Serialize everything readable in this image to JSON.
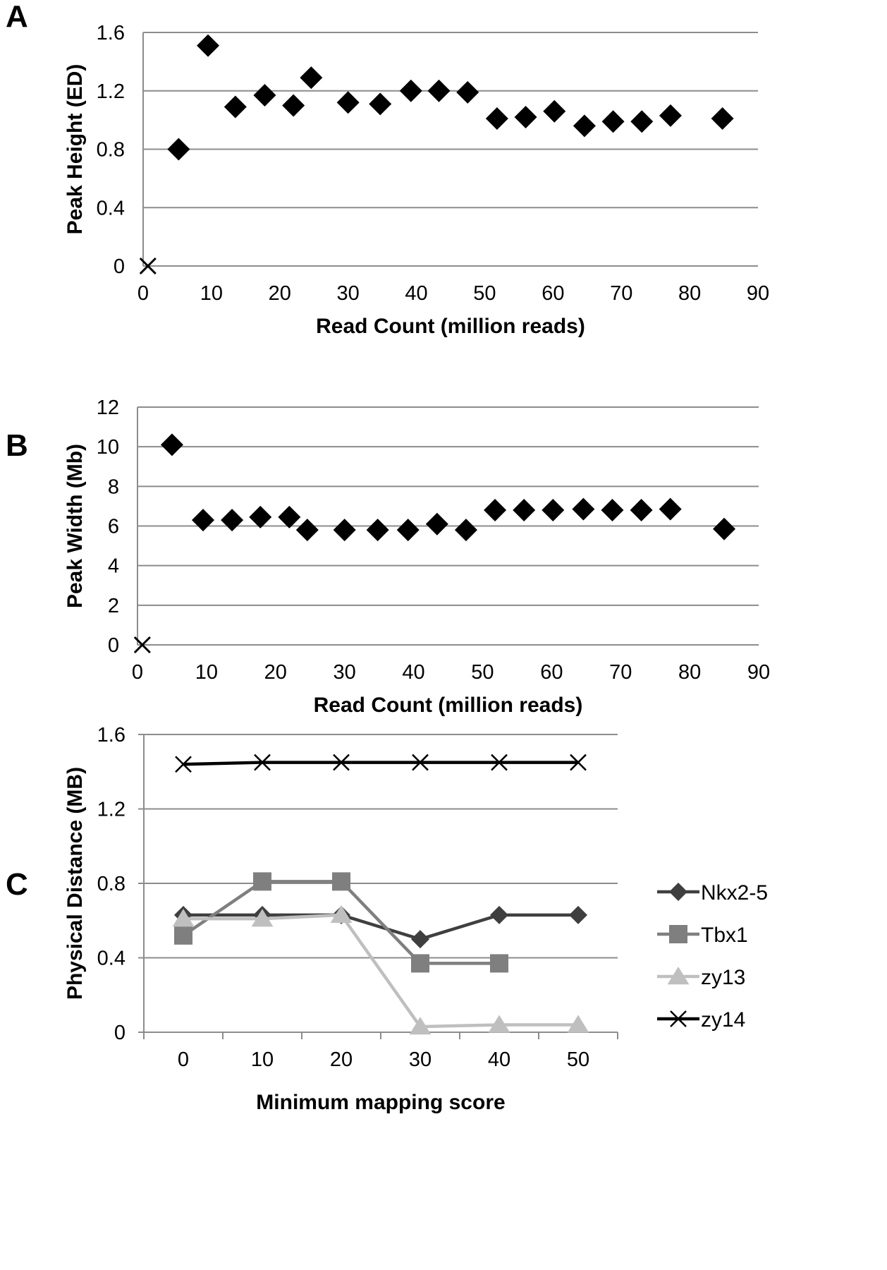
{
  "panels": {
    "a": "A",
    "b": "B",
    "c": "C"
  },
  "chart_data": [
    {
      "type": "scatter",
      "panel": "A",
      "xlabel": "Read Count (million reads)",
      "ylabel": "Peak Height (ED)",
      "xlim": [
        0,
        90
      ],
      "ylim": [
        0,
        1.6
      ],
      "x_ticks": [
        "0",
        "10",
        "20",
        "30",
        "40",
        "50",
        "60",
        "70",
        "80",
        "90"
      ],
      "y_ticks": [
        "0",
        "0.4",
        "0.8",
        "1.2",
        "1.6"
      ],
      "grid": true,
      "marker": "diamond",
      "series": [
        {
          "points": [
            [
              5.2,
              0.8
            ],
            [
              9.5,
              1.51
            ],
            [
              13.5,
              1.09
            ],
            [
              17.8,
              1.17
            ],
            [
              22.0,
              1.1
            ],
            [
              24.6,
              1.29
            ],
            [
              30.0,
              1.12
            ],
            [
              34.7,
              1.11
            ],
            [
              39.2,
              1.2
            ],
            [
              43.3,
              1.2
            ],
            [
              47.5,
              1.19
            ],
            [
              51.8,
              1.01
            ],
            [
              56.0,
              1.02
            ],
            [
              60.2,
              1.06
            ],
            [
              64.6,
              0.96
            ],
            [
              68.8,
              0.99
            ],
            [
              73.0,
              0.99
            ],
            [
              77.2,
              1.03
            ],
            [
              84.8,
              1.01
            ]
          ]
        }
      ],
      "annotations": [
        {
          "marker": "x",
          "x": 0.7,
          "y": 0
        }
      ]
    },
    {
      "type": "scatter",
      "panel": "B",
      "xlabel": "Read Count (million reads)",
      "ylabel": "Peak Width (Mb)",
      "xlim": [
        0,
        90
      ],
      "ylim": [
        0,
        12
      ],
      "x_ticks": [
        "0",
        "10",
        "20",
        "30",
        "40",
        "50",
        "60",
        "70",
        "80",
        "90"
      ],
      "y_ticks": [
        "0",
        "2",
        "4",
        "6",
        "8",
        "10",
        "12"
      ],
      "grid": true,
      "marker": "diamond",
      "series": [
        {
          "points": [
            [
              5.0,
              10.1
            ],
            [
              9.5,
              6.3
            ],
            [
              13.7,
              6.3
            ],
            [
              17.8,
              6.45
            ],
            [
              22.0,
              6.45
            ],
            [
              24.6,
              5.8
            ],
            [
              30.0,
              5.8
            ],
            [
              34.8,
              5.8
            ],
            [
              39.2,
              5.8
            ],
            [
              43.4,
              6.1
            ],
            [
              47.6,
              5.8
            ],
            [
              51.8,
              6.8
            ],
            [
              56.0,
              6.8
            ],
            [
              60.2,
              6.8
            ],
            [
              64.6,
              6.85
            ],
            [
              68.8,
              6.8
            ],
            [
              73.0,
              6.8
            ],
            [
              77.2,
              6.85
            ],
            [
              85.0,
              5.85
            ]
          ]
        }
      ],
      "annotations": [
        {
          "marker": "x",
          "x": 0.7,
          "y": 0
        }
      ]
    },
    {
      "type": "line",
      "panel": "C",
      "xlabel": "Minimum mapping score",
      "ylabel": "Physical Distance (MB)",
      "categories": [
        "0",
        "10",
        "20",
        "30",
        "40",
        "50"
      ],
      "ylim": [
        0,
        1.6
      ],
      "y_ticks": [
        "0",
        "0.4",
        "0.8",
        "1.2",
        "1.6"
      ],
      "grid": true,
      "legend_position": "right",
      "series": [
        {
          "name": "Nkx2-5",
          "marker": "diamond",
          "color": "#3f3f3f",
          "values": [
            0.63,
            0.63,
            0.63,
            0.5,
            0.63,
            0.63
          ]
        },
        {
          "name": "Tbx1",
          "marker": "square",
          "color": "#7f7f7f",
          "values": [
            0.52,
            0.81,
            0.81,
            0.37,
            0.37,
            null
          ]
        },
        {
          "name": "zy13",
          "marker": "triangle",
          "color": "#bfbfbf",
          "values": [
            0.61,
            0.61,
            0.63,
            0.03,
            0.04,
            0.04
          ]
        },
        {
          "name": "zy14",
          "marker": "x",
          "color": "#000000",
          "values": [
            1.44,
            1.45,
            1.45,
            1.45,
            1.45,
            1.45
          ]
        }
      ]
    }
  ]
}
